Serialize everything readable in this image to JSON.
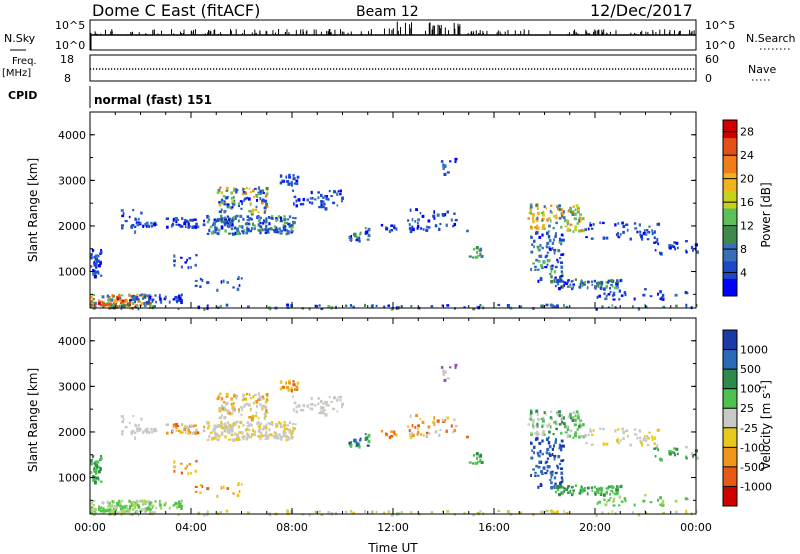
{
  "header": {
    "station": "Dome C East (fitACF)",
    "beam": "Beam 12",
    "date": "12/Dec/2017"
  },
  "strip_labels": {
    "nsky": "N.Sky",
    "nsky_ticks": [
      "10^5",
      "10^0"
    ],
    "nsearch": "N.Search",
    "freq": "Freq.",
    "freq_unit": "[MHz]",
    "freq_ticks": [
      "18",
      "8"
    ],
    "nave": "Nave",
    "nave_ticks": [
      "60",
      "0"
    ],
    "cpid_label": "CPID",
    "cpid_value": "normal (fast) 151"
  },
  "colors": {
    "power_scale": [
      "#0000ff",
      "#1a4ac8",
      "#3a6fb8",
      "#3f8a4a",
      "#5bbf5b",
      "#c8d21c",
      "#f2b21c",
      "#f07d1a",
      "#e4501a",
      "#d00000"
    ],
    "velocity_scale": [
      "#1a3aa8",
      "#2a6ab8",
      "#2e8a4a",
      "#4ec24e",
      "#c8c8c4",
      "#e8c81c",
      "#f0961a",
      "#e85a14",
      "#d00000"
    ]
  },
  "chart_data": [
    {
      "type": "line",
      "panel": "N.Sky / N.Search",
      "x": [
        "00:00",
        "04:00",
        "08:00",
        "12:00",
        "16:00",
        "20:00",
        "00:00"
      ],
      "y_ticks_left": [
        "10^5",
        "10^0"
      ],
      "y_ticks_right": [
        "10^5",
        "10^0"
      ]
    },
    {
      "type": "line",
      "panel": "Freq. / Nave",
      "ylabel": "Freq. [MHz]",
      "y_ticks_left": [
        "18",
        "8"
      ],
      "y_ticks_right": [
        "60",
        "0"
      ]
    },
    {
      "type": "heatmap",
      "panel": "power",
      "xlabel": "",
      "ylabel": "Slant Range [km]",
      "x_ticks": [
        "00:00",
        "04:00",
        "08:00",
        "12:00",
        "16:00",
        "20:00",
        "00:00"
      ],
      "y_ticks": [
        1000,
        2000,
        3000,
        4000
      ],
      "ylim": [
        200,
        4500
      ],
      "colorbar": {
        "label": "Power [dB]",
        "ticks": [
          4,
          8,
          12,
          16,
          20,
          24,
          28
        ],
        "range": [
          0,
          30
        ]
      }
    },
    {
      "type": "heatmap",
      "panel": "velocity",
      "xlabel": "Time UT",
      "ylabel": "Slant Range [km]",
      "x_ticks": [
        "00:00",
        "04:00",
        "08:00",
        "12:00",
        "16:00",
        "20:00",
        "00:00"
      ],
      "y_ticks": [
        1000,
        2000,
        3000,
        4000
      ],
      "ylim": [
        200,
        4500
      ],
      "colorbar": {
        "label": "Velocity [m s^-1]",
        "ticks": [
          1000,
          500,
          100,
          25,
          -25,
          -100,
          -500,
          -1000
        ]
      }
    }
  ]
}
